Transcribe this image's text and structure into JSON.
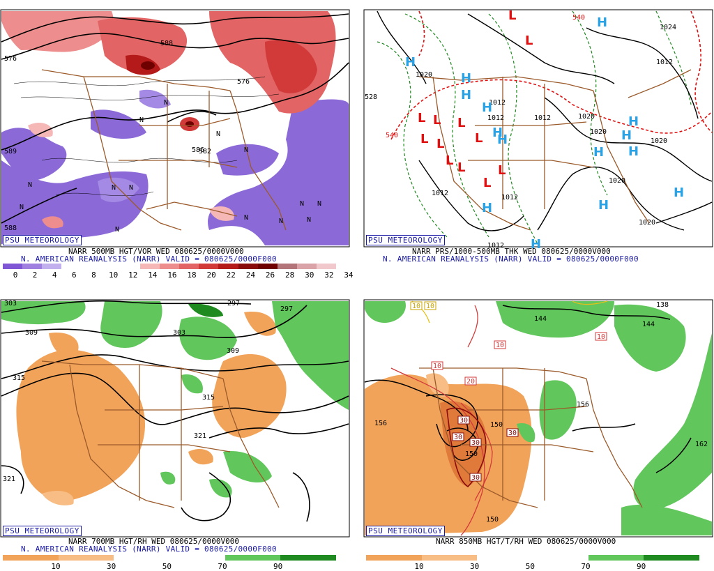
{
  "colors": {
    "vort_scale": [
      "#7f56d4",
      "#9f7fe0",
      "#c2afee",
      "#ffffff",
      "#ffffff",
      "#ffffff",
      "#ffffff",
      "#f6b7b7",
      "#ee8d8d",
      "#e26464",
      "#d23a3a",
      "#b41a1a",
      "#8a0b0b",
      "#6e0000",
      "#b3757a",
      "#d9a3a7",
      "#f1c9cc"
    ],
    "rh_scale": [
      "#f2a35a",
      "#f7bd84",
      "#ffffff",
      "#ffffff",
      "#61c65c",
      "#1f8a1f"
    ],
    "land_border": "#9b5a2a",
    "contour": "#000000",
    "high_color": "#29a3e6",
    "low_color": "#e01010"
  },
  "panels": [
    {
      "id": "500mb",
      "badge": "PSU METEOROLOGY",
      "caption1": "NARR 500MB HGT/VOR WED 080625/0000V000",
      "caption2": "N. AMERICAN REANALYSIS (NARR) VALID = 080625/0000F000",
      "scale_labels": [
        "0",
        "2",
        "4",
        "6",
        "8",
        "10",
        "12",
        "14",
        "16",
        "18",
        "20",
        "22",
        "24",
        "26",
        "28",
        "30",
        "32",
        "34"
      ],
      "contour_labels": [
        "576",
        "588",
        "582",
        "576",
        "589",
        "586",
        "588"
      ],
      "n_marks": [
        "N",
        "N",
        "N",
        "N",
        "N",
        "N",
        "N",
        "N",
        "N",
        "N",
        "N",
        "N",
        "N",
        "N"
      ]
    },
    {
      "id": "sfc",
      "badge": "PSU METEOROLOGY",
      "caption1": "NARR PRS/1000-500MB THK WED 080625/0000V000",
      "caption2": "N. AMERICAN REANALYSIS (NARR) VALID = 080625/0000F000",
      "contour_labels": [
        "540",
        "1024",
        "1012",
        "1020",
        "1012",
        "1012",
        "1020",
        "1020",
        "1020",
        "1012",
        "1012",
        "1012",
        "1012",
        "1020",
        "1020",
        "540",
        "528"
      ],
      "high": "H",
      "low": "L"
    },
    {
      "id": "700mb",
      "badge": "PSU METEOROLOGY",
      "caption1": "NARR 700MB HGT/RH WED 080625/0000V000",
      "caption2": "N. AMERICAN REANALYSIS (NARR) VALID = 080625/0000F000",
      "scale_labels": [
        "10",
        "30",
        "50",
        "70",
        "90"
      ],
      "contour_labels": [
        "303",
        "297",
        "297",
        "309",
        "303",
        "309",
        "315",
        "315",
        "321",
        "321"
      ]
    },
    {
      "id": "850mb",
      "badge": "PSU METEOROLOGY",
      "caption1": "NARR 850MB HGT/T/RH WED 080625/0000V000",
      "scale_labels": [
        "10",
        "30",
        "50",
        "70",
        "90"
      ],
      "contour_labels": [
        "144",
        "138",
        "144",
        "156",
        "150",
        "150",
        "156",
        "162",
        "150"
      ],
      "temp_labels": [
        "10",
        "10",
        "10",
        "10",
        "20",
        "30",
        "30",
        "30",
        "30",
        "30",
        "10"
      ]
    }
  ]
}
